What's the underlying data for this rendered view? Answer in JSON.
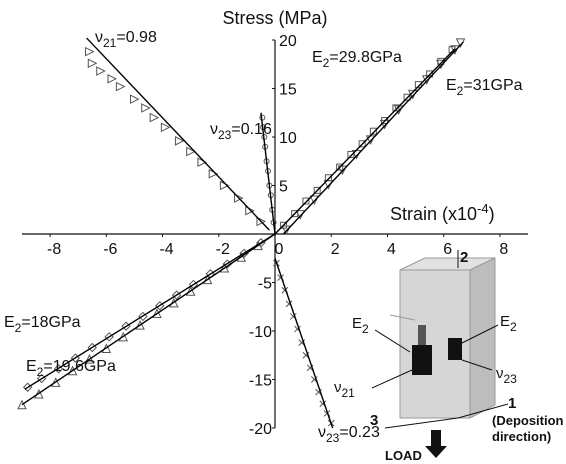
{
  "chart_data": {
    "type": "scatter",
    "y_label": "Stress (MPa)",
    "x_label": {
      "text": "Strain (x10",
      "sup": "-4",
      "end": ")"
    },
    "xlim": [
      -9,
      9
    ],
    "ylim": [
      -20,
      20
    ],
    "xticks": [
      -8,
      -6,
      -4,
      -2,
      0,
      2,
      4,
      6,
      8
    ],
    "yticks": [
      -20,
      -15,
      -10,
      -5,
      5,
      10,
      15,
      20
    ],
    "series": [
      {
        "marker": "triangle-right",
        "color": "#555555",
        "x": [
          -6.6,
          -6.5,
          -6.2,
          -5.8,
          -5.5,
          -5.0,
          -4.6,
          -4.3,
          -3.9,
          -3.4,
          -3.0,
          -2.6,
          -2.2,
          -1.8,
          -1.3,
          -0.9,
          -0.5
        ],
        "y": [
          18.8,
          17.6,
          16.8,
          16.0,
          15.2,
          13.9,
          13.0,
          12.0,
          11.0,
          9.6,
          8.5,
          7.4,
          6.2,
          5.0,
          3.7,
          2.4,
          1.3
        ]
      },
      {
        "marker": "star",
        "color": "#555555",
        "x": [
          -0.45,
          -0.42,
          -0.38,
          -0.35,
          -0.3,
          -0.25,
          -0.2,
          -0.15,
          -0.1,
          -0.05
        ],
        "y": [
          12,
          11,
          10,
          9,
          7.5,
          6.5,
          5,
          4,
          2.5,
          1.2
        ]
      },
      {
        "marker": "square",
        "color": "#555555",
        "x": [
          0.3,
          0.7,
          1.1,
          1.5,
          1.9,
          2.3,
          2.7,
          3.1,
          3.5,
          3.9,
          4.3,
          4.7,
          5.1,
          5.5,
          5.9,
          6.3
        ],
        "y": [
          0.9,
          2.1,
          3.4,
          4.5,
          5.8,
          6.9,
          8.2,
          9.3,
          10.6,
          11.7,
          13.0,
          14.1,
          15.4,
          16.5,
          17.8,
          19.0
        ]
      },
      {
        "marker": "triangle-down",
        "color": "#555555",
        "x": [
          0.4,
          0.9,
          1.4,
          1.9,
          2.4,
          2.9,
          3.4,
          3.9,
          4.4,
          4.9,
          5.4,
          5.9,
          6.4,
          6.6
        ],
        "y": [
          0.4,
          2.0,
          3.5,
          5.1,
          6.6,
          8.2,
          9.7,
          11.3,
          12.8,
          14.4,
          15.9,
          17.5,
          19.0,
          19.7
        ]
      },
      {
        "marker": "diamond",
        "color": "#555555",
        "x": [
          -0.5,
          -1.1,
          -1.7,
          -2.3,
          -2.9,
          -3.5,
          -4.1,
          -4.7,
          -5.3,
          -5.9,
          -6.5,
          -7.1,
          -7.7,
          -8.3,
          -8.8
        ],
        "y": [
          -0.9,
          -2.0,
          -3.1,
          -4.1,
          -5.2,
          -6.3,
          -7.4,
          -8.5,
          -9.5,
          -10.6,
          -11.7,
          -12.8,
          -13.9,
          -14.9,
          -15.8
        ]
      },
      {
        "marker": "triangle-up",
        "color": "#555555",
        "x": [
          -0.6,
          -1.2,
          -1.8,
          -2.4,
          -3.0,
          -3.6,
          -4.2,
          -4.8,
          -5.4,
          -6.0,
          -6.6,
          -7.2,
          -7.8,
          -8.4,
          -9.0
        ],
        "y": [
          -1.2,
          -2.4,
          -3.5,
          -4.7,
          -5.9,
          -7.1,
          -8.2,
          -9.4,
          -10.6,
          -11.8,
          -12.9,
          -14.1,
          -15.3,
          -16.5,
          -17.6
        ]
      },
      {
        "marker": "cross",
        "color": "#555555",
        "x": [
          0.05,
          0.2,
          0.35,
          0.5,
          0.65,
          0.8,
          0.95,
          1.1,
          1.25,
          1.4,
          1.55,
          1.7,
          1.85,
          2.0
        ],
        "y": [
          -3,
          -4.5,
          -5.8,
          -7.2,
          -8.5,
          -9.8,
          -11.2,
          -12.5,
          -13.8,
          -15,
          -16.3,
          -17.5,
          -18.5,
          -19.5
        ]
      },
      {
        "marker": "line",
        "color": "#000000",
        "x": [
          -6.7,
          -0.2
        ],
        "y": [
          20.2,
          0.4
        ]
      },
      {
        "marker": "line",
        "color": "#000000",
        "x": [
          -0.5,
          0
        ],
        "y": [
          12.5,
          0
        ]
      },
      {
        "marker": "line",
        "color": "#000000",
        "x": [
          0,
          6.4
        ],
        "y": [
          0,
          19.1
        ]
      },
      {
        "marker": "line",
        "color": "#000000",
        "x": [
          0.3,
          6.7
        ],
        "y": [
          0,
          19.8
        ]
      },
      {
        "marker": "line",
        "color": "#000000",
        "x": [
          0,
          -8.9
        ],
        "y": [
          0,
          -16
        ]
      },
      {
        "marker": "line",
        "color": "#000000",
        "x": [
          0,
          -9
        ],
        "y": [
          0,
          -17.6
        ]
      },
      {
        "marker": "line",
        "color": "#000000",
        "x": [
          0,
          2.05
        ],
        "y": [
          -2.5,
          -20
        ]
      }
    ],
    "annotations": [
      {
        "base": "ν",
        "sub": "21",
        "rest": "=0.98"
      },
      {
        "base": "ν",
        "sub": "23",
        "rest": "=0.16"
      },
      {
        "base": "E",
        "sub": "2",
        "rest": "=29.8GPa"
      },
      {
        "base": "E",
        "sub": "2",
        "rest": "=31GPa"
      },
      {
        "base": "E",
        "sub": "2",
        "rest": "=18GPa"
      },
      {
        "base": "E",
        "sub": "2",
        "rest": "=19.6GPa"
      },
      {
        "base": "ν",
        "sub": "23",
        "rest": "=0.23"
      }
    ]
  },
  "inset": {
    "axis_2": "2",
    "axis_3": "3",
    "axis_1": "1",
    "deposition": "(Deposition",
    "direction": "direction)",
    "load": "LOAD",
    "labels": [
      {
        "base": "E",
        "sub": "2"
      },
      {
        "base": "E",
        "sub": "2"
      },
      {
        "base": "ν",
        "sub": "21"
      },
      {
        "base": "ν",
        "sub": "23"
      }
    ]
  }
}
